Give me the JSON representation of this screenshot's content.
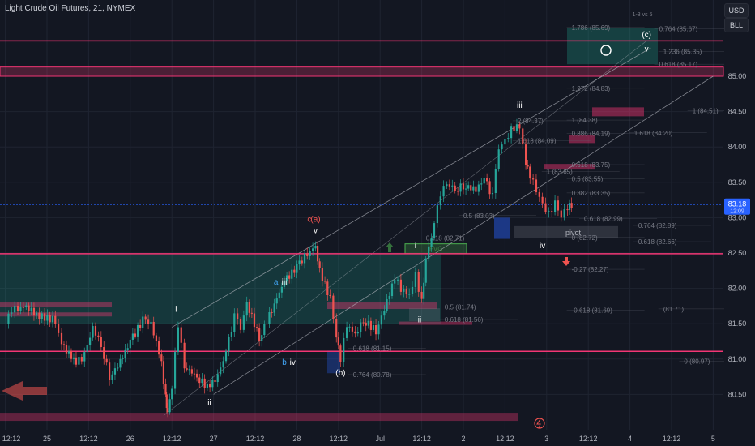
{
  "title": "Light Crude Oil Futures, 21, NYMEX",
  "axis_buttons": [
    "USD",
    "BLL"
  ],
  "colors": {
    "bg": "#131722",
    "grid": "#1f2431",
    "up": "#26a69a",
    "down": "#ef5350",
    "pink": "#f23674",
    "teal": "#22ab94",
    "fib": "#5d606b",
    "trend": "#b2b5be"
  },
  "chart_data": {
    "type": "candlestick",
    "symbol": "Light Crude Oil Futures",
    "interval": "21",
    "exchange": "NYMEX",
    "y_ticks": [
      80.5,
      81.0,
      81.5,
      82.0,
      82.5,
      83.0,
      83.5,
      84.0,
      84.5,
      85.0
    ],
    "x_ticks": [
      {
        "label": "12:12",
        "x": -1
      },
      {
        "label": "25",
        "x": 0
      },
      {
        "label": "12:12",
        "x": 1
      },
      {
        "label": "26",
        "x": 2
      },
      {
        "label": "12:12",
        "x": 3
      },
      {
        "label": "27",
        "x": 4
      },
      {
        "label": "12:12",
        "x": 5
      },
      {
        "label": "28",
        "x": 6
      },
      {
        "label": "12:12",
        "x": 7
      },
      {
        "label": "Jul",
        "x": 8
      },
      {
        "label": "12:12",
        "x": 9
      },
      {
        "label": "2",
        "x": 10
      },
      {
        "label": "12:12",
        "x": 11
      },
      {
        "label": "3",
        "x": 12
      },
      {
        "label": "12:12",
        "x": 13
      },
      {
        "label": "4",
        "x": 14
      },
      {
        "label": "12:12",
        "x": 15
      },
      {
        "label": "5",
        "x": 16
      }
    ],
    "price_path": [
      [
        -1,
        81.5
      ],
      [
        -0.85,
        81.7
      ],
      [
        -0.7,
        81.72
      ],
      [
        -0.5,
        81.75
      ],
      [
        -0.25,
        81.62
      ],
      [
        0.2,
        81.55
      ],
      [
        0.35,
        81.2
      ],
      [
        0.7,
        80.95
      ],
      [
        0.9,
        81.05
      ],
      [
        1.1,
        81.45
      ],
      [
        1.3,
        81.2
      ],
      [
        1.5,
        80.75
      ],
      [
        1.7,
        80.9
      ],
      [
        2,
        81.25
      ],
      [
        2.3,
        81.55
      ],
      [
        2.5,
        81.5
      ],
      [
        2.75,
        80.95
      ],
      [
        2.85,
        80.45
      ],
      [
        2.9,
        80.22
      ],
      [
        3,
        80.6
      ],
      [
        3.15,
        81.5
      ],
      [
        3.3,
        80.9
      ],
      [
        3.6,
        80.75
      ],
      [
        3.85,
        80.6
      ],
      [
        4.1,
        80.75
      ],
      [
        4.3,
        81.1
      ],
      [
        4.5,
        81.6
      ],
      [
        4.65,
        81.45
      ],
      [
        4.8,
        81.8
      ],
      [
        5.1,
        81.3
      ],
      [
        5.4,
        81.7
      ],
      [
        5.7,
        82.1
      ],
      [
        6,
        82.3
      ],
      [
        6.25,
        82.5
      ],
      [
        6.45,
        82.6
      ],
      [
        6.55,
        82.25
      ],
      [
        6.8,
        81.85
      ],
      [
        6.95,
        81.3
      ],
      [
        7.05,
        81.0
      ],
      [
        7.2,
        81.5
      ],
      [
        7.4,
        81.35
      ],
      [
        7.6,
        81.55
      ],
      [
        7.9,
        81.4
      ],
      [
        8.1,
        81.7
      ],
      [
        8.35,
        82.15
      ],
      [
        8.5,
        82.0
      ],
      [
        8.7,
        81.9
      ],
      [
        8.85,
        82.2
      ],
      [
        9,
        81.8
      ],
      [
        9.1,
        82.4
      ],
      [
        9.3,
        82.9
      ],
      [
        9.45,
        83.35
      ],
      [
        9.6,
        83.5
      ],
      [
        9.8,
        83.4
      ],
      [
        10,
        83.45
      ],
      [
        10.3,
        83.4
      ],
      [
        10.5,
        83.55
      ],
      [
        10.7,
        83.3
      ],
      [
        10.85,
        84.0
      ],
      [
        11,
        84.1
      ],
      [
        11.15,
        84.25
      ],
      [
        11.35,
        84.3
      ],
      [
        11.5,
        83.75
      ],
      [
        11.6,
        83.6
      ],
      [
        11.75,
        83.4
      ],
      [
        11.9,
        83.2
      ],
      [
        12.05,
        83.05
      ],
      [
        12.2,
        83.2
      ],
      [
        12.35,
        83.0
      ],
      [
        12.5,
        83.15
      ],
      [
        12.6,
        83.18
      ]
    ],
    "horizontal_levels": [
      {
        "price": 85.5,
        "label": "85.50"
      },
      {
        "price": 82.49,
        "label": "82.49"
      },
      {
        "price": 81.11,
        "label": "81.11"
      }
    ],
    "last_price": {
      "price": 83.18,
      "label": "83.18",
      "sub": "12:09"
    },
    "fib_labels": [
      {
        "text": "1.786 (85.69)",
        "price": 85.69,
        "x": 12.6
      },
      {
        "text": "0.764 (85.67)",
        "price": 85.67,
        "x": 14.7
      },
      {
        "text": "1.236 (85.35)",
        "price": 85.35,
        "x": 14.8
      },
      {
        "text": "0.618 (85.17)",
        "price": 85.17,
        "x": 14.7
      },
      {
        "text": "1.272 (84.83)",
        "price": 84.83,
        "x": 12.6
      },
      {
        "text": "1 (84.51)",
        "price": 84.51,
        "x": 15.5
      },
      {
        "text": "2 (84.37)",
        "price": 84.37,
        "x": 11.3
      },
      {
        "text": "1 (84.38)",
        "price": 84.38,
        "x": 12.6
      },
      {
        "text": "0.886 (84.19)",
        "price": 84.19,
        "x": 12.6
      },
      {
        "text": "1.618 (84.20)",
        "price": 84.2,
        "x": 14.1
      },
      {
        "text": "1.618 (84.09)",
        "price": 84.09,
        "x": 11.3
      },
      {
        "text": "0.618 (83.75)",
        "price": 83.75,
        "x": 12.6
      },
      {
        "text": "1 (83.65)",
        "price": 83.65,
        "x": 12.0
      },
      {
        "text": "0.5 (83.55)",
        "price": 83.55,
        "x": 12.6
      },
      {
        "text": "0.382 (83.35)",
        "price": 83.35,
        "x": 12.6
      },
      {
        "text": "0.5 (83.03)",
        "price": 83.03,
        "x": 10.0
      },
      {
        "text": "0.618 (82.99)",
        "price": 82.99,
        "x": 12.9
      },
      {
        "text": "0.764 (82.89)",
        "price": 82.89,
        "x": 14.2
      },
      {
        "text": "0.618 (82.71)",
        "price": 82.71,
        "x": 9.1
      },
      {
        "text": "0 (82.72)",
        "price": 82.72,
        "x": 12.6
      },
      {
        "text": "0.618 (82.66)",
        "price": 82.66,
        "x": 14.2
      },
      {
        "text": "-0.27 (82.27)",
        "price": 82.27,
        "x": 12.6
      },
      {
        "text": "0.5 (81.74)",
        "price": 81.74,
        "x": 9.55
      },
      {
        "text": "-0.618 (81.69)",
        "price": 81.69,
        "x": 12.6
      },
      {
        "text": "(81.71)",
        "price": 81.71,
        "x": 14.8
      },
      {
        "text": "0.618 (81.56)",
        "price": 81.56,
        "x": 9.55
      },
      {
        "text": "0.618 (81.15)",
        "price": 81.15,
        "x": 7.35
      },
      {
        "text": "0 (80.97)",
        "price": 80.97,
        "x": 15.3
      },
      {
        "text": "0.764 (80.78)",
        "price": 80.78,
        "x": 7.35
      }
    ],
    "wave_labels": [
      {
        "text": "i",
        "price": 81.67,
        "x": 3.1
      },
      {
        "text": "ii",
        "price": 80.35,
        "x": 3.9
      },
      {
        "text": "iii",
        "price": 82.05,
        "x": 5.7
      },
      {
        "text": "a",
        "price": 82.05,
        "x": 5.5
      },
      {
        "text": "iv",
        "price": 80.92,
        "x": 5.9
      },
      {
        "text": "b",
        "price": 80.92,
        "x": 5.7
      },
      {
        "text": "v",
        "price": 82.78,
        "x": 6.45
      },
      {
        "text": "(a)",
        "price": 82.94,
        "x": 6.45
      },
      {
        "text": "c",
        "price": 82.94,
        "x": 6.3
      },
      {
        "text": "(b)",
        "price": 80.77,
        "x": 7.05
      },
      {
        "text": "i",
        "price": 82.57,
        "x": 8.85
      },
      {
        "text": "ii",
        "price": 81.52,
        "x": 8.95
      },
      {
        "text": "iii",
        "price": 84.55,
        "x": 11.35
      },
      {
        "text": "iv",
        "price": 82.57,
        "x": 11.9
      },
      {
        "text": "v",
        "price": 85.35,
        "x": 14.4
      },
      {
        "text": "(c)",
        "price": 85.55,
        "x": 14.4
      },
      {
        "text": "1-3 vs 5",
        "price": 85.85,
        "x": 14.3
      }
    ],
    "box_labels": {
      "pivot": "pivot",
      "fvg": "FVG"
    }
  }
}
